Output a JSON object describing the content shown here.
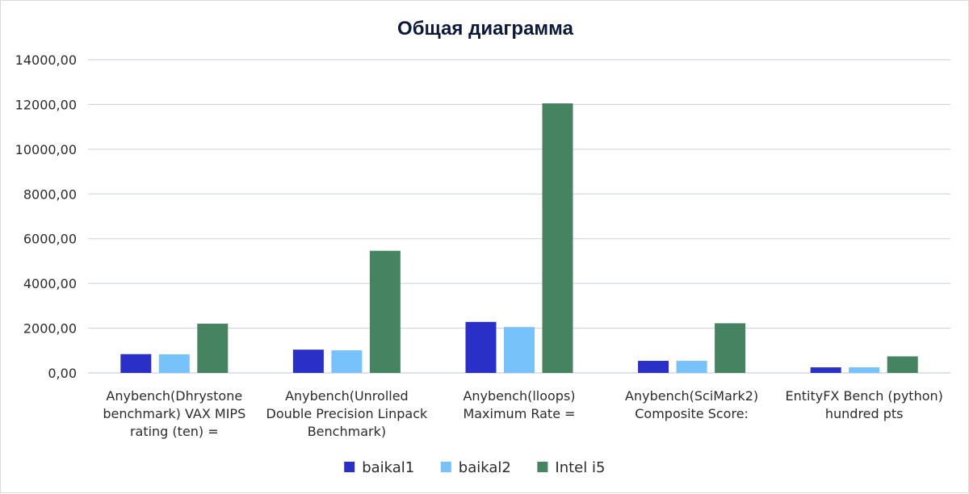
{
  "colors": {
    "baikal1": "#2a2fc8",
    "baikal2": "#77c2fa",
    "intel_i5": "#468360",
    "grid": "#c9cde8",
    "title": "#0b1a3a",
    "text": "#2b2b2b"
  },
  "chart_data": {
    "type": "bar",
    "title": "Общая диаграмма",
    "xlabel": "",
    "ylabel": "",
    "ylim": [
      0,
      14000
    ],
    "yticks": [
      0,
      2000,
      4000,
      6000,
      8000,
      10000,
      12000,
      14000
    ],
    "ytick_labels": [
      "0,00",
      "2000,00",
      "4000,00",
      "6000,00",
      "8000,00",
      "10000,00",
      "12000,00",
      "14000,00"
    ],
    "grid": true,
    "legend_position": "bottom",
    "categories": [
      [
        "Anybench(Dhrystone",
        "benchmark) VAX  MIPS",
        "rating (ten) ="
      ],
      [
        "Anybench(Unrolled",
        "Double Precision Linpack",
        "Benchmark)"
      ],
      [
        "Anybench(lloops)",
        "Maximum    Rate ="
      ],
      [
        "Anybench(SciMark2)",
        "Composite Score:"
      ],
      [
        "EntityFX Bench (python)",
        "hundred pts"
      ]
    ],
    "series": [
      {
        "name": "baikal1",
        "color": "#2a2fc8",
        "values": [
          840,
          1040,
          2280,
          540,
          250
        ]
      },
      {
        "name": "baikal2",
        "color": "#77c2fa",
        "values": [
          830,
          1010,
          2050,
          540,
          250
        ]
      },
      {
        "name": "Intel i5",
        "color": "#468360",
        "values": [
          2200,
          5460,
          12050,
          2220,
          740
        ]
      }
    ]
  }
}
